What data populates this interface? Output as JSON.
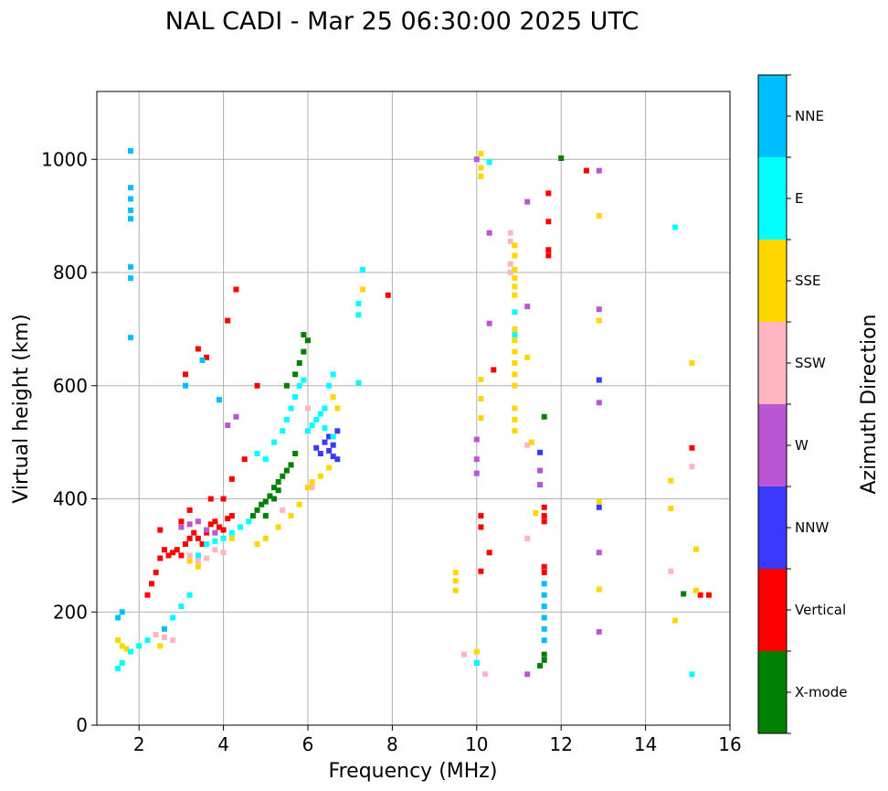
{
  "chart_data": {
    "type": "scatter",
    "title": "NAL CADI - Mar 25 06:30:00 2025 UTC",
    "xlabel": "Frequency (MHz)",
    "ylabel": "Virtual height (km)",
    "xlim": [
      1,
      16
    ],
    "ylim": [
      0,
      1120
    ],
    "xticks": [
      2,
      4,
      6,
      8,
      10,
      12,
      14,
      16
    ],
    "yticks": [
      0,
      200,
      400,
      600,
      800,
      1000
    ],
    "grid": true,
    "colorbar": {
      "label": "Azimuth Direction",
      "categories": [
        {
          "name": "X-mode",
          "color": "#008000"
        },
        {
          "name": "Vertical",
          "color": "#ff0000"
        },
        {
          "name": "NNW",
          "color": "#3a3aff"
        },
        {
          "name": "W",
          "color": "#ba55d3"
        },
        {
          "name": "SSW",
          "color": "#ffb6c1"
        },
        {
          "name": "SSE",
          "color": "#ffd700"
        },
        {
          "name": "E",
          "color": "#00ffff"
        },
        {
          "name": "NNE",
          "color": "#00bfff"
        }
      ]
    },
    "series": [
      {
        "name": "X-mode",
        "points": [
          [
            4.7,
            370
          ],
          [
            4.8,
            380
          ],
          [
            4.9,
            390
          ],
          [
            5.0,
            395
          ],
          [
            5.1,
            405
          ],
          [
            5.2,
            420
          ],
          [
            5.3,
            430
          ],
          [
            5.4,
            440
          ],
          [
            5.5,
            450
          ],
          [
            5.0,
            370
          ],
          [
            5.2,
            400
          ],
          [
            5.3,
            415
          ],
          [
            5.6,
            460
          ],
          [
            5.7,
            480
          ],
          [
            5.5,
            600
          ],
          [
            5.7,
            620
          ],
          [
            5.8,
            640
          ],
          [
            5.9,
            660
          ],
          [
            6.0,
            680
          ],
          [
            5.9,
            690
          ],
          [
            11.5,
            105
          ],
          [
            11.6,
            115
          ],
          [
            11.6,
            125
          ],
          [
            11.6,
            545
          ],
          [
            12.0,
            1002
          ],
          [
            14.9,
            232
          ]
        ]
      },
      {
        "name": "Vertical",
        "points": [
          [
            2.2,
            230
          ],
          [
            2.3,
            250
          ],
          [
            2.4,
            270
          ],
          [
            2.5,
            295
          ],
          [
            2.6,
            310
          ],
          [
            2.7,
            300
          ],
          [
            2.8,
            305
          ],
          [
            2.9,
            310
          ],
          [
            3.0,
            300
          ],
          [
            3.1,
            320
          ],
          [
            3.2,
            330
          ],
          [
            3.3,
            340
          ],
          [
            3.4,
            330
          ],
          [
            3.5,
            320
          ],
          [
            3.6,
            340
          ],
          [
            3.7,
            355
          ],
          [
            3.8,
            360
          ],
          [
            3.9,
            350
          ],
          [
            4.0,
            345
          ],
          [
            4.1,
            365
          ],
          [
            4.2,
            370
          ],
          [
            2.5,
            345
          ],
          [
            3.0,
            360
          ],
          [
            3.2,
            380
          ],
          [
            3.7,
            400
          ],
          [
            4.0,
            400
          ],
          [
            4.2,
            435
          ],
          [
            4.5,
            470
          ],
          [
            3.1,
            620
          ],
          [
            3.4,
            665
          ],
          [
            3.6,
            650
          ],
          [
            4.1,
            715
          ],
          [
            4.3,
            770
          ],
          [
            4.8,
            600
          ],
          [
            7.9,
            760
          ],
          [
            10.1,
            370
          ],
          [
            10.1,
            350
          ],
          [
            10.1,
            272
          ],
          [
            10.3,
            305
          ],
          [
            10.4,
            628
          ],
          [
            11.6,
            360
          ],
          [
            11.6,
            370
          ],
          [
            11.6,
            385
          ],
          [
            11.6,
            270
          ],
          [
            11.6,
            280
          ],
          [
            11.7,
            890
          ],
          [
            11.7,
            940
          ],
          [
            11.7,
            840
          ],
          [
            11.7,
            830
          ],
          [
            12.6,
            980
          ],
          [
            15.1,
            490
          ],
          [
            15.5,
            230
          ],
          [
            15.3,
            230
          ]
        ]
      },
      {
        "name": "NNW",
        "points": [
          [
            6.2,
            490
          ],
          [
            6.3,
            480
          ],
          [
            6.4,
            500
          ],
          [
            6.5,
            485
          ],
          [
            6.6,
            475
          ],
          [
            6.7,
            470
          ],
          [
            6.6,
            495
          ],
          [
            6.5,
            510
          ],
          [
            6.7,
            520
          ],
          [
            12.9,
            610
          ],
          [
            12.9,
            385
          ],
          [
            11.5,
            482
          ],
          [
            10.0,
            110
          ]
        ]
      },
      {
        "name": "W",
        "points": [
          [
            3.0,
            350
          ],
          [
            3.2,
            355
          ],
          [
            3.4,
            360
          ],
          [
            3.6,
            345
          ],
          [
            3.8,
            340
          ],
          [
            4.1,
            530
          ],
          [
            4.3,
            545
          ],
          [
            10.0,
            470
          ],
          [
            10.0,
            445
          ],
          [
            10.0,
            505
          ],
          [
            10.3,
            710
          ],
          [
            10.3,
            870
          ],
          [
            10.0,
            1000
          ],
          [
            11.2,
            925
          ],
          [
            11.2,
            740
          ],
          [
            11.5,
            450
          ],
          [
            11.5,
            425
          ],
          [
            11.2,
            90
          ],
          [
            12.9,
            980
          ],
          [
            12.9,
            735
          ],
          [
            12.9,
            570
          ],
          [
            12.9,
            305
          ],
          [
            12.9,
            165
          ]
        ]
      },
      {
        "name": "SSW",
        "points": [
          [
            2.4,
            160
          ],
          [
            2.6,
            155
          ],
          [
            2.8,
            150
          ],
          [
            3.2,
            300
          ],
          [
            3.4,
            290
          ],
          [
            3.6,
            295
          ],
          [
            3.8,
            310
          ],
          [
            4.0,
            305
          ],
          [
            5.4,
            380
          ],
          [
            6.1,
            420
          ],
          [
            6.0,
            560
          ],
          [
            10.2,
            90
          ],
          [
            9.7,
            125
          ],
          [
            10.8,
            870
          ],
          [
            10.8,
            855
          ],
          [
            10.8,
            815
          ],
          [
            10.8,
            800
          ],
          [
            11.2,
            330
          ],
          [
            11.2,
            495
          ],
          [
            14.6,
            272
          ],
          [
            15.1,
            457
          ]
        ]
      },
      {
        "name": "SSE",
        "points": [
          [
            1.5,
            150
          ],
          [
            1.6,
            140
          ],
          [
            1.7,
            135
          ],
          [
            2.5,
            140
          ],
          [
            3.2,
            290
          ],
          [
            3.4,
            280
          ],
          [
            4.2,
            330
          ],
          [
            4.8,
            320
          ],
          [
            5.0,
            330
          ],
          [
            5.3,
            350
          ],
          [
            5.6,
            370
          ],
          [
            5.8,
            390
          ],
          [
            6.0,
            420
          ],
          [
            6.1,
            430
          ],
          [
            6.3,
            440
          ],
          [
            6.5,
            455
          ],
          [
            6.6,
            580
          ],
          [
            6.7,
            560
          ],
          [
            7.3,
            770
          ],
          [
            9.5,
            270
          ],
          [
            9.5,
            255
          ],
          [
            9.5,
            238
          ],
          [
            10.1,
            1010
          ],
          [
            10.1,
            985
          ],
          [
            10.1,
            970
          ],
          [
            10.1,
            611
          ],
          [
            10.1,
            577
          ],
          [
            10.1,
            543
          ],
          [
            10.0,
            130
          ],
          [
            10.9,
            520
          ],
          [
            10.9,
            540
          ],
          [
            10.9,
            560
          ],
          [
            10.9,
            600
          ],
          [
            10.9,
            620
          ],
          [
            10.9,
            640
          ],
          [
            10.9,
            660
          ],
          [
            10.9,
            680
          ],
          [
            10.9,
            700
          ],
          [
            10.9,
            760
          ],
          [
            10.9,
            775
          ],
          [
            10.9,
            790
          ],
          [
            10.9,
            805
          ],
          [
            10.9,
            830
          ],
          [
            10.9,
            848
          ],
          [
            11.2,
            650
          ],
          [
            11.3,
            500
          ],
          [
            11.4,
            375
          ],
          [
            12.9,
            900
          ],
          [
            12.9,
            715
          ],
          [
            12.9,
            395
          ],
          [
            12.9,
            240
          ],
          [
            14.6,
            432
          ],
          [
            14.6,
            383
          ],
          [
            14.7,
            185
          ],
          [
            15.1,
            640
          ],
          [
            15.2,
            311
          ],
          [
            15.2,
            238
          ]
        ]
      },
      {
        "name": "E",
        "points": [
          [
            1.5,
            100
          ],
          [
            1.6,
            110
          ],
          [
            1.8,
            130
          ],
          [
            2.0,
            140
          ],
          [
            2.2,
            150
          ],
          [
            2.8,
            190
          ],
          [
            3.0,
            210
          ],
          [
            3.2,
            230
          ],
          [
            3.4,
            300
          ],
          [
            3.6,
            320
          ],
          [
            3.8,
            325
          ],
          [
            4.0,
            330
          ],
          [
            4.2,
            340
          ],
          [
            4.4,
            350
          ],
          [
            4.6,
            360
          ],
          [
            4.8,
            480
          ],
          [
            5.0,
            470
          ],
          [
            5.2,
            500
          ],
          [
            5.4,
            520
          ],
          [
            5.5,
            540
          ],
          [
            5.6,
            560
          ],
          [
            5.7,
            580
          ],
          [
            5.8,
            600
          ],
          [
            5.9,
            610
          ],
          [
            6.0,
            520
          ],
          [
            6.1,
            530
          ],
          [
            6.2,
            540
          ],
          [
            6.3,
            550
          ],
          [
            6.4,
            560
          ],
          [
            6.5,
            600
          ],
          [
            6.6,
            620
          ],
          [
            6.4,
            525
          ],
          [
            6.6,
            510
          ],
          [
            3.9,
            575
          ],
          [
            7.2,
            605
          ],
          [
            7.2,
            745
          ],
          [
            7.3,
            805
          ],
          [
            7.2,
            725
          ],
          [
            10.0,
            110
          ],
          [
            10.3,
            995
          ],
          [
            10.9,
            690
          ],
          [
            10.9,
            730
          ],
          [
            14.7,
            880
          ],
          [
            15.1,
            90
          ]
        ]
      },
      {
        "name": "NNE",
        "points": [
          [
            1.8,
            1015
          ],
          [
            1.8,
            950
          ],
          [
            1.8,
            930
          ],
          [
            1.8,
            910
          ],
          [
            1.8,
            895
          ],
          [
            1.8,
            810
          ],
          [
            1.8,
            790
          ],
          [
            1.8,
            685
          ],
          [
            1.5,
            190
          ],
          [
            1.6,
            200
          ],
          [
            2.6,
            170
          ],
          [
            3.1,
            600
          ],
          [
            3.5,
            645
          ],
          [
            3.9,
            575
          ],
          [
            11.6,
            250
          ],
          [
            11.6,
            230
          ],
          [
            11.6,
            210
          ],
          [
            11.6,
            190
          ],
          [
            11.6,
            170
          ],
          [
            11.6,
            150
          ]
        ]
      }
    ]
  }
}
